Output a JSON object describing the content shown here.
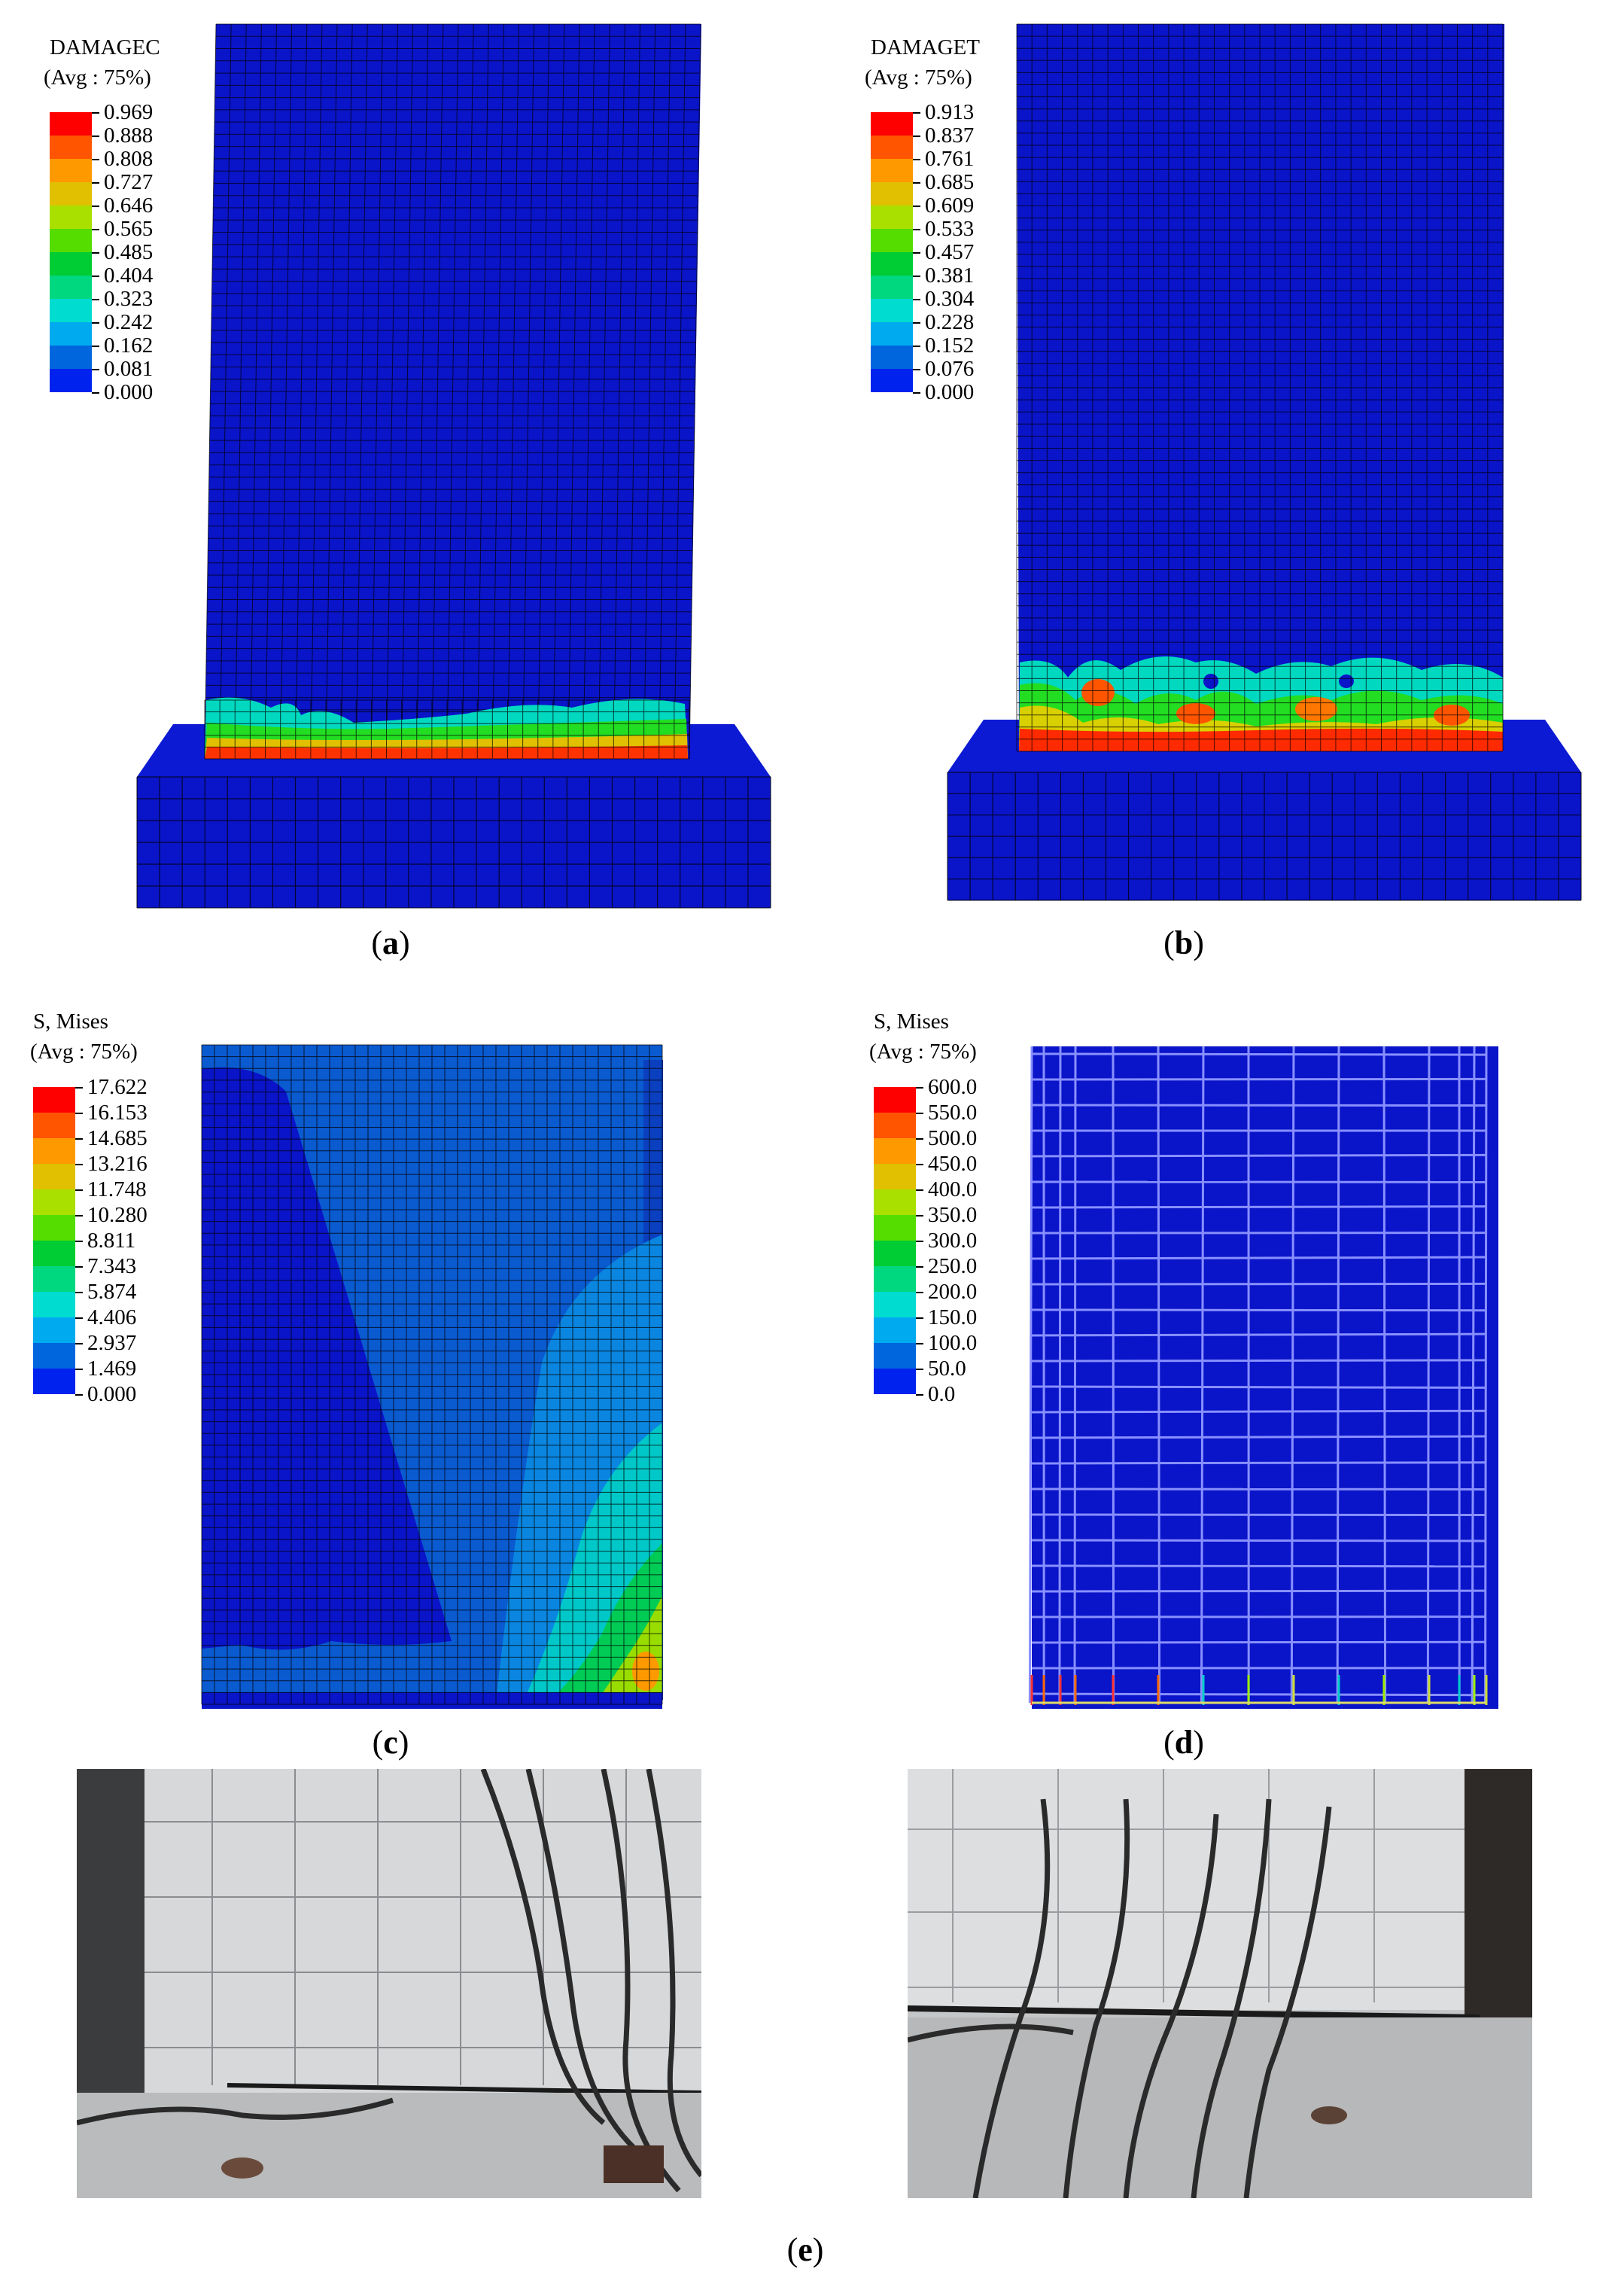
{
  "panels": {
    "a": {
      "caption_letter": "a",
      "legend": {
        "title": "DAMAGEC",
        "subtitle": "(Avg : 75%)",
        "values": [
          "0.969",
          "0.888",
          "0.808",
          "0.727",
          "0.646",
          "0.565",
          "0.485",
          "0.404",
          "0.323",
          "0.242",
          "0.162",
          "0.081",
          "0.000"
        ]
      }
    },
    "b": {
      "caption_letter": "b",
      "legend": {
        "title": "DAMAGET",
        "subtitle": "(Avg : 75%)",
        "values": [
          "0.913",
          "0.837",
          "0.761",
          "0.685",
          "0.609",
          "0.533",
          "0.457",
          "0.381",
          "0.304",
          "0.228",
          "0.152",
          "0.076",
          "0.000"
        ]
      }
    },
    "c": {
      "caption_letter": "c",
      "legend": {
        "title": "S, Mises",
        "subtitle": "(Avg : 75%)",
        "values": [
          "17.622",
          "16.153",
          "14.685",
          "13.216",
          "11.748",
          "10.280",
          "8.811",
          "7.343",
          "5.874",
          "4.406",
          "2.937",
          "1.469",
          "0.000"
        ]
      }
    },
    "d": {
      "caption_letter": "d",
      "legend": {
        "title": "S, Mises",
        "subtitle": "(Avg : 75%)",
        "values": [
          "600.0",
          "550.0",
          "500.0",
          "450.0",
          "400.0",
          "350.0",
          "300.0",
          "250.0",
          "200.0",
          "150.0",
          "100.0",
          "50.0",
          "0.0"
        ]
      }
    },
    "e": {
      "caption_letter": "e"
    }
  },
  "colors": {
    "contour_scale": [
      "#ff0000",
      "#ff5500",
      "#ff9900",
      "#e0c000",
      "#aae000",
      "#55dd00",
      "#00cc33",
      "#00d880",
      "#00dcd0",
      "#00aaee",
      "#0066dd",
      "#0022ee"
    ],
    "model_blue": "#0a14c8",
    "mesh_line": "#000000"
  }
}
